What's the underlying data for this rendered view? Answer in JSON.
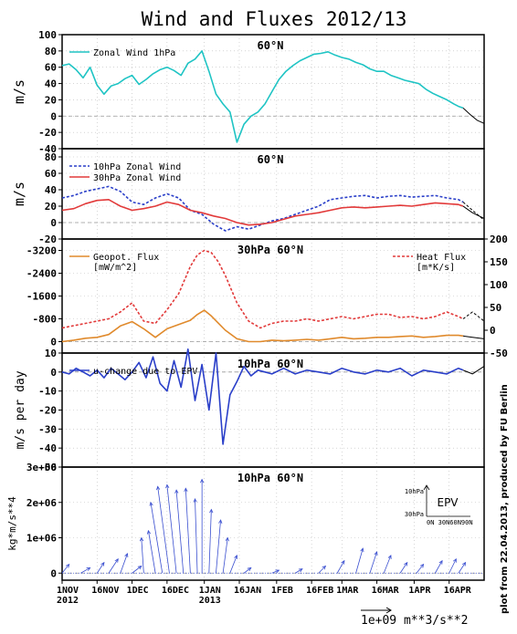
{
  "title": "Wind and Fluxes 2012/13",
  "credit": "plot from 22.04.2013, produced by FU Berlin",
  "x_axis": {
    "ticks": [
      {
        "day": 0,
        "label": "1NOV",
        "sub": "2012"
      },
      {
        "day": 15,
        "label": "16NOV",
        "sub": ""
      },
      {
        "day": 30,
        "label": "1DEC",
        "sub": ""
      },
      {
        "day": 45,
        "label": "16DEC",
        "sub": ""
      },
      {
        "day": 61,
        "label": "1JAN",
        "sub": "2013"
      },
      {
        "day": 76,
        "label": "16JAN",
        "sub": ""
      },
      {
        "day": 92,
        "label": "1FEB",
        "sub": ""
      },
      {
        "day": 107,
        "label": "16FEB",
        "sub": ""
      },
      {
        "day": 120,
        "label": "1MAR",
        "sub": ""
      },
      {
        "day": 135,
        "label": "16MAR",
        "sub": ""
      },
      {
        "day": 151,
        "label": "1APR",
        "sub": ""
      },
      {
        "day": 166,
        "label": "16APR",
        "sub": ""
      }
    ],
    "range": [
      0,
      181
    ],
    "observed_end_day": 172
  },
  "chart_data": [
    {
      "type": "line",
      "panel": "zonal-wind-1hpa",
      "title": "60°N",
      "ylabel": "m/s",
      "ylim": [
        -40,
        100
      ],
      "yticks": [
        -40,
        -20,
        0,
        20,
        40,
        60,
        80,
        100
      ],
      "series": [
        {
          "name": "Zonal Wind 1hPa",
          "color": "#1fc4c4",
          "dash": "solid",
          "x": [
            0,
            3,
            6,
            9,
            12,
            15,
            18,
            21,
            24,
            27,
            30,
            33,
            36,
            39,
            42,
            45,
            48,
            51,
            54,
            57,
            60,
            63,
            66,
            69,
            72,
            75,
            78,
            81,
            84,
            87,
            90,
            93,
            96,
            99,
            102,
            105,
            108,
            111,
            114,
            117,
            120,
            123,
            126,
            129,
            132,
            135,
            138,
            141,
            144,
            147,
            150,
            153,
            156,
            159,
            162,
            165,
            168,
            170,
            172
          ],
          "y": [
            62,
            64,
            57,
            47,
            60,
            38,
            27,
            37,
            40,
            46,
            50,
            39,
            45,
            52,
            57,
            60,
            56,
            50,
            65,
            70,
            80,
            55,
            27,
            15,
            5,
            -32,
            -10,
            0,
            5,
            15,
            30,
            45,
            55,
            62,
            68,
            72,
            76,
            77,
            79,
            75,
            72,
            70,
            66,
            63,
            58,
            55,
            55,
            50,
            47,
            44,
            42,
            40,
            33,
            28,
            24,
            20,
            15,
            12,
            10
          ]
        },
        {
          "name": "",
          "color": "#000000",
          "dash": "solid",
          "x": [
            172,
            175,
            178,
            181
          ],
          "y": [
            10,
            2,
            -5,
            -9
          ]
        }
      ]
    },
    {
      "type": "line",
      "panel": "zonal-wind-10-30hpa",
      "title": "60°N",
      "ylabel": "m/s",
      "ylim": [
        -20,
        90
      ],
      "yticks": [
        -20,
        0,
        20,
        40,
        60,
        80
      ],
      "series": [
        {
          "name": "10hPa Zonal Wind",
          "color": "#2a3fc9",
          "dash": "dashed",
          "x": [
            0,
            5,
            10,
            15,
            20,
            25,
            30,
            35,
            40,
            45,
            50,
            55,
            60,
            65,
            70,
            75,
            80,
            85,
            90,
            95,
            100,
            105,
            110,
            115,
            120,
            125,
            130,
            135,
            140,
            145,
            150,
            155,
            160,
            165,
            170,
            172
          ],
          "y": [
            30,
            33,
            38,
            41,
            44,
            38,
            25,
            22,
            30,
            35,
            30,
            15,
            10,
            -2,
            -10,
            -5,
            -8,
            -3,
            2,
            5,
            10,
            15,
            20,
            28,
            30,
            32,
            33,
            30,
            32,
            33,
            31,
            32,
            33,
            30,
            28,
            25
          ]
        },
        {
          "name": "30hPa Zonal Wind",
          "color": "#e23a3a",
          "dash": "solid",
          "x": [
            0,
            5,
            10,
            15,
            20,
            25,
            30,
            35,
            40,
            45,
            50,
            55,
            60,
            65,
            70,
            75,
            80,
            85,
            90,
            95,
            100,
            105,
            110,
            115,
            120,
            125,
            130,
            135,
            140,
            145,
            150,
            155,
            160,
            165,
            170,
            172
          ],
          "y": [
            15,
            17,
            23,
            27,
            28,
            20,
            15,
            17,
            20,
            25,
            22,
            15,
            12,
            8,
            5,
            0,
            -3,
            -2,
            0,
            4,
            8,
            10,
            12,
            15,
            18,
            19,
            18,
            19,
            20,
            21,
            20,
            22,
            24,
            23,
            22,
            20
          ]
        },
        {
          "name": "",
          "color": "#000000",
          "dash": "dashed",
          "x": [
            172,
            176,
            181
          ],
          "y": [
            25,
            15,
            3
          ]
        },
        {
          "name": "",
          "color": "#000000",
          "dash": "solid",
          "x": [
            172,
            176,
            181
          ],
          "y": [
            20,
            12,
            5
          ]
        }
      ]
    },
    {
      "type": "line",
      "panel": "fluxes-30hpa",
      "title": "30hPa 60°N",
      "ylabel": "",
      "ylim_left": [
        400,
        -3600
      ],
      "yticks_left": [
        0,
        -800,
        -1600,
        -2400,
        -3200
      ],
      "ylim_right": [
        -50,
        200
      ],
      "yticks_right": [
        -50,
        0,
        50,
        100,
        150,
        200
      ],
      "series": [
        {
          "name": "Geopot. Flux",
          "unit": "[mW/m^2]",
          "axis": "left",
          "color": "#e08a2c",
          "dash": "solid",
          "x": [
            0,
            5,
            10,
            15,
            20,
            25,
            30,
            35,
            40,
            45,
            50,
            55,
            58,
            61,
            64,
            67,
            70,
            75,
            80,
            85,
            90,
            95,
            100,
            105,
            110,
            115,
            120,
            125,
            130,
            135,
            140,
            145,
            150,
            155,
            160,
            165,
            170,
            172
          ],
          "y": [
            0,
            -50,
            -120,
            -150,
            -250,
            -550,
            -700,
            -450,
            -150,
            -450,
            -600,
            -750,
            -950,
            -1100,
            -900,
            -650,
            -400,
            -100,
            0,
            0,
            -50,
            -30,
            -50,
            -80,
            -50,
            -100,
            -150,
            -100,
            -120,
            -150,
            -150,
            -180,
            -200,
            -150,
            -180,
            -220,
            -220,
            -200
          ]
        },
        {
          "name": "Heat Flux",
          "unit": "[m*K/s]",
          "axis": "right",
          "color": "#e23a3a",
          "dash": "dashed",
          "x": [
            0,
            5,
            10,
            15,
            20,
            25,
            30,
            35,
            40,
            45,
            50,
            55,
            58,
            61,
            64,
            67,
            70,
            75,
            80,
            85,
            90,
            95,
            100,
            105,
            110,
            115,
            120,
            125,
            130,
            135,
            140,
            145,
            150,
            155,
            160,
            165,
            170,
            172
          ],
          "y": [
            5,
            10,
            15,
            20,
            25,
            40,
            60,
            20,
            15,
            45,
            80,
            140,
            165,
            175,
            170,
            150,
            120,
            60,
            20,
            5,
            15,
            20,
            20,
            25,
            20,
            25,
            30,
            25,
            30,
            35,
            35,
            28,
            30,
            25,
            30,
            40,
            30,
            25
          ]
        },
        {
          "name": "",
          "axis": "right",
          "color": "#000000",
          "dash": "dashed",
          "x": [
            172,
            176,
            181
          ],
          "y": [
            25,
            40,
            20
          ]
        },
        {
          "name": "",
          "axis": "left",
          "color": "#000000",
          "dash": "solid",
          "x": [
            172,
            176,
            181
          ],
          "y": [
            -200,
            -150,
            -100
          ]
        }
      ]
    },
    {
      "type": "line",
      "panel": "u-change-epv",
      "title": "10hPa 60°N",
      "ylabel": "m/s per day",
      "ylim": [
        -50,
        10
      ],
      "yticks": [
        -50,
        -40,
        -30,
        -20,
        -10,
        0,
        10
      ],
      "series": [
        {
          "name": "u-change due to EPV",
          "color": "#2a3fc9",
          "dash": "solid",
          "x": [
            0,
            3,
            6,
            9,
            12,
            15,
            18,
            21,
            24,
            27,
            30,
            33,
            36,
            39,
            42,
            45,
            48,
            51,
            54,
            57,
            60,
            63,
            66,
            69,
            72,
            75,
            78,
            81,
            84,
            87,
            90,
            95,
            100,
            105,
            110,
            115,
            120,
            125,
            130,
            135,
            140,
            145,
            150,
            155,
            160,
            165,
            170,
            172
          ],
          "y": [
            0,
            -1,
            2,
            0,
            -2,
            1,
            -3,
            2,
            -1,
            -4,
            0,
            5,
            -3,
            8,
            -6,
            -10,
            6,
            -8,
            12,
            -15,
            4,
            -20,
            10,
            -38,
            -12,
            -5,
            3,
            -2,
            1,
            0,
            -1,
            2,
            -1,
            1,
            0,
            -1,
            2,
            0,
            -1,
            1,
            0,
            2,
            -2,
            1,
            0,
            -1,
            2,
            1
          ]
        },
        {
          "name": "",
          "color": "#000000",
          "dash": "solid",
          "x": [
            172,
            176,
            181
          ],
          "y": [
            1,
            -1,
            3
          ]
        }
      ]
    },
    {
      "type": "quiver",
      "panel": "epv-vectors",
      "title": "10hPa 60°N",
      "ylabel": "kg*m/s**4",
      "ylim": [
        -200000,
        3000000
      ],
      "yticks": [
        0,
        1000000,
        2000000,
        3000000
      ],
      "ytick_labels": [
        "0",
        "1e+06",
        "2e+06",
        "3e+06"
      ],
      "legend": {
        "label": "EPV",
        "yaxis_top": "10hPa",
        "yaxis_bottom": "30hPa",
        "xaxis": "0N 30N60N90N"
      },
      "scale_label": "1e+09  m**3/s**2",
      "arrows": [
        {
          "day": 0,
          "tip_day": 3,
          "tip_y": 250000
        },
        {
          "day": 8,
          "tip_day": 12,
          "tip_y": 150000
        },
        {
          "day": 15,
          "tip_day": 18,
          "tip_y": 300000
        },
        {
          "day": 20,
          "tip_day": 24,
          "tip_y": 400000
        },
        {
          "day": 25,
          "tip_day": 28,
          "tip_y": 550000
        },
        {
          "day": 30,
          "tip_day": 34,
          "tip_y": 200000
        },
        {
          "day": 35,
          "tip_day": 34,
          "tip_y": 1000000
        },
        {
          "day": 40,
          "tip_day": 37,
          "tip_y": 1200000
        },
        {
          "day": 43,
          "tip_day": 38,
          "tip_y": 2000000
        },
        {
          "day": 46,
          "tip_day": 41,
          "tip_y": 2450000
        },
        {
          "day": 49,
          "tip_day": 45,
          "tip_y": 2500000
        },
        {
          "day": 52,
          "tip_day": 49,
          "tip_y": 2350000
        },
        {
          "day": 55,
          "tip_day": 53,
          "tip_y": 2400000
        },
        {
          "day": 58,
          "tip_day": 57,
          "tip_y": 2100000
        },
        {
          "day": 60,
          "tip_day": 60,
          "tip_y": 2650000
        },
        {
          "day": 63,
          "tip_day": 64,
          "tip_y": 1800000
        },
        {
          "day": 66,
          "tip_day": 68,
          "tip_y": 1500000
        },
        {
          "day": 69,
          "tip_day": 71,
          "tip_y": 1000000
        },
        {
          "day": 72,
          "tip_day": 75,
          "tip_y": 500000
        },
        {
          "day": 78,
          "tip_day": 81,
          "tip_y": 150000
        },
        {
          "day": 90,
          "tip_day": 93,
          "tip_y": 80000
        },
        {
          "day": 100,
          "tip_day": 103,
          "tip_y": 120000
        },
        {
          "day": 110,
          "tip_day": 113,
          "tip_y": 200000
        },
        {
          "day": 118,
          "tip_day": 121,
          "tip_y": 350000
        },
        {
          "day": 126,
          "tip_day": 129,
          "tip_y": 700000
        },
        {
          "day": 132,
          "tip_day": 135,
          "tip_y": 600000
        },
        {
          "day": 138,
          "tip_day": 141,
          "tip_y": 500000
        },
        {
          "day": 145,
          "tip_day": 148,
          "tip_y": 300000
        },
        {
          "day": 152,
          "tip_day": 155,
          "tip_y": 250000
        },
        {
          "day": 160,
          "tip_day": 163,
          "tip_y": 350000
        },
        {
          "day": 166,
          "tip_day": 169,
          "tip_y": 400000
        },
        {
          "day": 170,
          "tip_day": 173,
          "tip_y": 300000
        }
      ]
    }
  ]
}
